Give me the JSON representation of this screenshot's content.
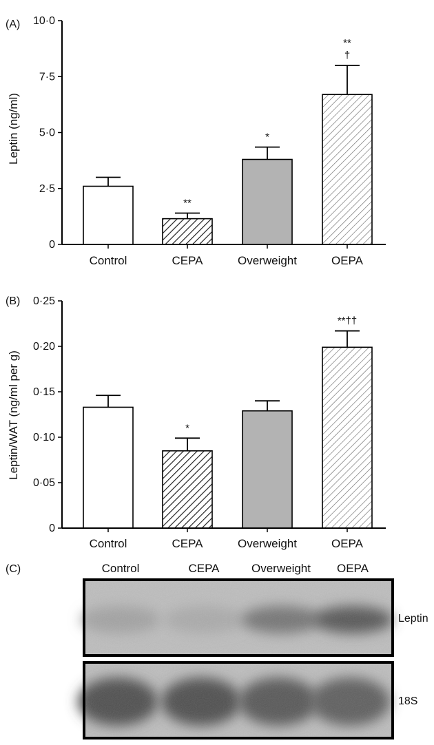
{
  "chart_data": [
    {
      "panel_label": "(A)",
      "type": "bar",
      "ylabel": "Leptin (ng/ml)",
      "categories": [
        "Control",
        "CEPA",
        "Overweight",
        "OEPA"
      ],
      "values": [
        2.6,
        1.15,
        3.8,
        6.7
      ],
      "errors": [
        0.4,
        0.25,
        0.55,
        1.3
      ],
      "annotations": [
        "",
        "**",
        "*",
        "**\n†"
      ],
      "ylim": [
        0,
        10
      ],
      "yticks": [
        0,
        2.5,
        5.0,
        7.5,
        10.0
      ],
      "ytick_labels": [
        "0",
        "2·5",
        "5·0",
        "7·5",
        "10·0"
      ],
      "fills": [
        "white",
        "hatch-dark",
        "gray",
        "hatch-light"
      ]
    },
    {
      "panel_label": "(B)",
      "type": "bar",
      "ylabel": "Leptin/WAT (ng/ml per g)",
      "categories": [
        "Control",
        "CEPA",
        "Overweight",
        "OEPA"
      ],
      "values": [
        0.133,
        0.085,
        0.129,
        0.199
      ],
      "errors": [
        0.013,
        0.014,
        0.011,
        0.018
      ],
      "annotations": [
        "",
        "*",
        "",
        "**††"
      ],
      "ylim": [
        0,
        0.25
      ],
      "yticks": [
        0,
        0.05,
        0.1,
        0.15,
        0.2,
        0.25
      ],
      "ytick_labels": [
        "0",
        "0·05",
        "0·10",
        "0·15",
        "0·20",
        "0·25"
      ],
      "fills": [
        "white",
        "hatch-dark",
        "gray",
        "hatch-light"
      ]
    }
  ],
  "blot": {
    "panel_label": "(C)",
    "lanes": [
      "Control",
      "CEPA",
      "Overweight",
      "OEPA"
    ],
    "rows": [
      {
        "label": "Leptin",
        "intensities": [
          0.25,
          0.2,
          0.55,
          0.75
        ]
      },
      {
        "label": "18S",
        "intensities": [
          0.8,
          0.8,
          0.75,
          0.7
        ]
      }
    ]
  },
  "colors": {
    "gray_fill": "#b3b3b3",
    "hatch_dark": "#222222",
    "hatch_light": "#666666",
    "blot_bg": "#b5b5b5",
    "band": "#3a3a3a"
  }
}
